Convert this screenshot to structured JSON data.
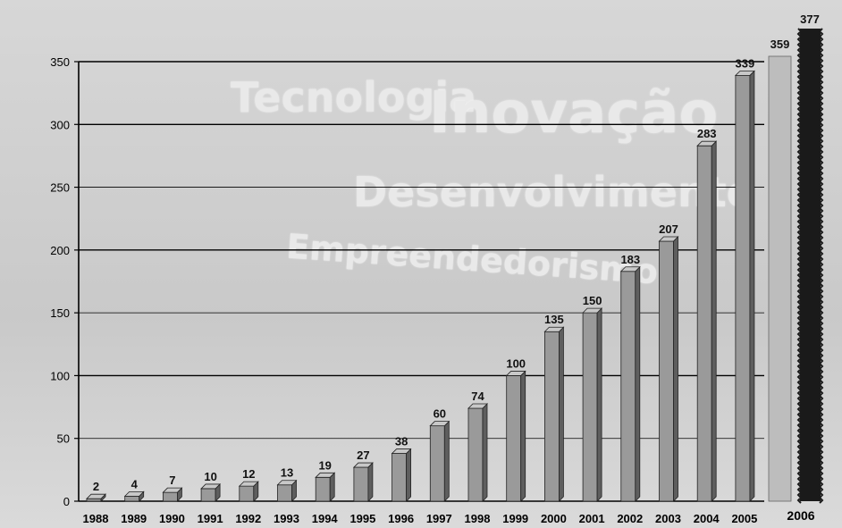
{
  "background_words": {
    "w1": "Tecnologia",
    "w2": "Inovação",
    "w3": "Desenvolvimento",
    "w4": "Empreendedorismo"
  },
  "chart_data": {
    "type": "bar",
    "categories": [
      "1988",
      "1989",
      "1990",
      "1991",
      "1992",
      "1993",
      "1994",
      "1995",
      "1996",
      "1997",
      "1998",
      "1999",
      "2000",
      "2001",
      "2002",
      "2003",
      "2004",
      "2005",
      "2006"
    ],
    "values": [
      2,
      4,
      7,
      10,
      12,
      13,
      19,
      27,
      38,
      60,
      74,
      100,
      135,
      150,
      183,
      207,
      283,
      339,
      377
    ],
    "extra_bars": [
      {
        "label": "359",
        "value": 359
      }
    ],
    "ylim": [
      0,
      360
    ],
    "yticks": [
      0,
      50,
      100,
      150,
      200,
      250,
      300,
      350
    ],
    "grid": true,
    "title": "",
    "xlabel": "",
    "ylabel": "",
    "colors": {
      "bar": "#9a9a9a",
      "bar_side": "#5e5e5e",
      "bar_top": "#c8c8c8",
      "last_bar": "#1a1a1a",
      "light_bar": "#bdbdbd"
    }
  }
}
